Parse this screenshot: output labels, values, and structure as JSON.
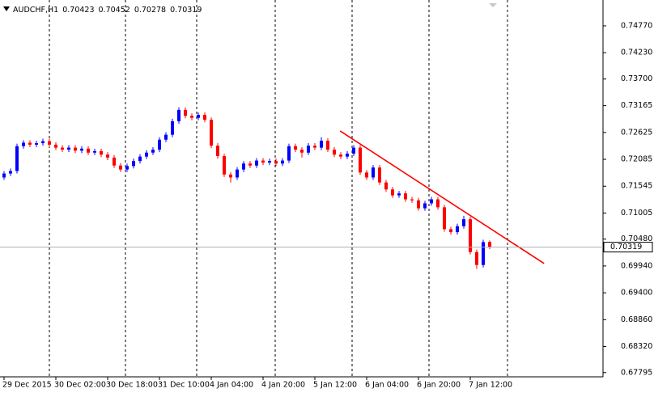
{
  "chart_data": {
    "type": "candlestick",
    "symbol": "AUDCHF,H1",
    "up_color": "#0000ff",
    "down_color": "#ff0000",
    "open": [
      0.7172,
      0.718,
      0.7185,
      0.7235,
      0.7242,
      0.7238,
      0.7241,
      0.7245,
      0.7238,
      0.7232,
      0.7228,
      0.7232,
      0.7226,
      0.723,
      0.7222,
      0.7225,
      0.7218,
      0.7212,
      0.7196,
      0.7188,
      0.7195,
      0.7205,
      0.7214,
      0.7222,
      0.7228,
      0.7248,
      0.7258,
      0.7285,
      0.7308,
      0.7296,
      0.7292,
      0.7298,
      0.7288,
      0.7236,
      0.7215,
      0.7178,
      0.7172,
      0.7188,
      0.72,
      0.7196,
      0.7206,
      0.7202,
      0.7205,
      0.72,
      0.7206,
      0.7235,
      0.7228,
      0.7222,
      0.7236,
      0.7232,
      0.7246,
      0.7228,
      0.7218,
      0.7214,
      0.722,
      0.7232,
      0.7182,
      0.7172,
      0.7192,
      0.7162,
      0.7148,
      0.7136,
      0.714,
      0.7128,
      0.7126,
      0.711,
      0.712,
      0.7128,
      0.7112,
      0.7068,
      0.7062,
      0.7074,
      0.7088,
      0.7022,
      0.6996,
      0.70423
    ],
    "high": [
      0.7185,
      0.719,
      0.724,
      0.7247,
      0.7247,
      0.7246,
      0.725,
      0.725,
      0.7243,
      0.7237,
      0.7237,
      0.7237,
      0.7235,
      0.7235,
      0.723,
      0.723,
      0.7223,
      0.7217,
      0.7201,
      0.72,
      0.721,
      0.7219,
      0.7227,
      0.7233,
      0.7253,
      0.7263,
      0.729,
      0.7313,
      0.7313,
      0.7301,
      0.7303,
      0.7303,
      0.7293,
      0.7241,
      0.722,
      0.7183,
      0.7193,
      0.7205,
      0.7205,
      0.7211,
      0.7211,
      0.721,
      0.721,
      0.7211,
      0.724,
      0.724,
      0.7233,
      0.7241,
      0.7241,
      0.7253,
      0.7251,
      0.7233,
      0.7223,
      0.7225,
      0.7237,
      0.7237,
      0.7187,
      0.7197,
      0.7197,
      0.7167,
      0.7153,
      0.7145,
      0.7145,
      0.7133,
      0.7131,
      0.7125,
      0.7133,
      0.7133,
      0.7117,
      0.7073,
      0.7079,
      0.7095,
      0.7093,
      0.7027,
      0.7047,
      0.70452
    ],
    "low": [
      0.7167,
      0.7175,
      0.718,
      0.723,
      0.7233,
      0.7233,
      0.7236,
      0.7233,
      0.7227,
      0.7223,
      0.7223,
      0.7221,
      0.7221,
      0.7217,
      0.7217,
      0.7213,
      0.7207,
      0.7191,
      0.7183,
      0.7183,
      0.719,
      0.72,
      0.7209,
      0.7217,
      0.7223,
      0.7243,
      0.7253,
      0.728,
      0.7291,
      0.7287,
      0.7287,
      0.7283,
      0.7231,
      0.721,
      0.7173,
      0.7162,
      0.7167,
      0.7183,
      0.7191,
      0.7191,
      0.7197,
      0.7197,
      0.7195,
      0.7195,
      0.7201,
      0.7223,
      0.7212,
      0.7217,
      0.7227,
      0.7227,
      0.7223,
      0.7213,
      0.7209,
      0.7209,
      0.7215,
      0.7177,
      0.7167,
      0.7167,
      0.7157,
      0.7143,
      0.7131,
      0.7131,
      0.7123,
      0.7121,
      0.7105,
      0.7105,
      0.7115,
      0.7107,
      0.7063,
      0.7057,
      0.7057,
      0.7069,
      0.7017,
      0.6988,
      0.6991,
      0.70278
    ],
    "close": [
      0.718,
      0.7185,
      0.7235,
      0.7242,
      0.7238,
      0.7241,
      0.7245,
      0.7238,
      0.7232,
      0.7228,
      0.7232,
      0.7226,
      0.723,
      0.7222,
      0.7225,
      0.7218,
      0.7212,
      0.7196,
      0.7188,
      0.7195,
      0.7205,
      0.7214,
      0.7222,
      0.7228,
      0.7248,
      0.7258,
      0.7285,
      0.7308,
      0.7296,
      0.7292,
      0.7298,
      0.7288,
      0.7236,
      0.7215,
      0.7178,
      0.7172,
      0.7188,
      0.72,
      0.7196,
      0.7206,
      0.7202,
      0.7205,
      0.72,
      0.7206,
      0.7235,
      0.7228,
      0.7222,
      0.7236,
      0.7232,
      0.7246,
      0.7228,
      0.7218,
      0.7214,
      0.722,
      0.7232,
      0.7182,
      0.7172,
      0.7192,
      0.7162,
      0.7148,
      0.7136,
      0.714,
      0.7128,
      0.7126,
      0.711,
      0.712,
      0.7128,
      0.7112,
      0.7068,
      0.7062,
      0.7074,
      0.7088,
      0.7022,
      0.6996,
      0.7042,
      0.70319
    ],
    "xlim": [
      -0.625,
      92.5
    ],
    "ylim": [
      0.6771,
      0.7529
    ],
    "yticks": [
      {
        "value": 0.7477,
        "label": "0.74770"
      },
      {
        "value": 0.7423,
        "label": "0.74230"
      },
      {
        "value": 0.737,
        "label": "0.73700"
      },
      {
        "value": 0.73165,
        "label": "0.73165"
      },
      {
        "value": 0.72625,
        "label": "0.72625"
      },
      {
        "value": 0.72085,
        "label": "0.72085"
      },
      {
        "value": 0.71545,
        "label": "0.71545"
      },
      {
        "value": 0.71005,
        "label": "0.71005"
      },
      {
        "value": 0.7048,
        "label": "0.70480"
      },
      {
        "value": 0.6994,
        "label": "0.69940"
      },
      {
        "value": 0.694,
        "label": "0.69400"
      },
      {
        "value": 0.6886,
        "label": "0.68860"
      },
      {
        "value": 0.6832,
        "label": "0.68320"
      },
      {
        "value": 0.67795,
        "label": "0.67795"
      }
    ],
    "xticks": [
      {
        "value": 0,
        "label": "29 Dec 2015"
      },
      {
        "value": 8,
        "label": "30 Dec 02:00"
      },
      {
        "value": 16,
        "label": "30 Dec 18:00"
      },
      {
        "value": 24,
        "label": "31 Dec 10:00"
      },
      {
        "value": 32,
        "label": "4 Jan 04:00"
      },
      {
        "value": 40,
        "label": "4 Jan 20:00"
      },
      {
        "value": 48,
        "label": "5 Jan 12:00"
      },
      {
        "value": 56,
        "label": "6 Jan 04:00"
      },
      {
        "value": 64,
        "label": "6 Jan 20:00"
      },
      {
        "value": 72,
        "label": "7 Jan 12:00"
      }
    ],
    "separators": [
      7,
      18.75,
      29.75,
      41.875,
      53.75,
      65.625,
      77.75
    ],
    "trendline": {
      "color": "#ff0000",
      "x": [
        51.9,
        83.4
      ],
      "y": [
        0.72656,
        0.6999
      ]
    }
  }
}
